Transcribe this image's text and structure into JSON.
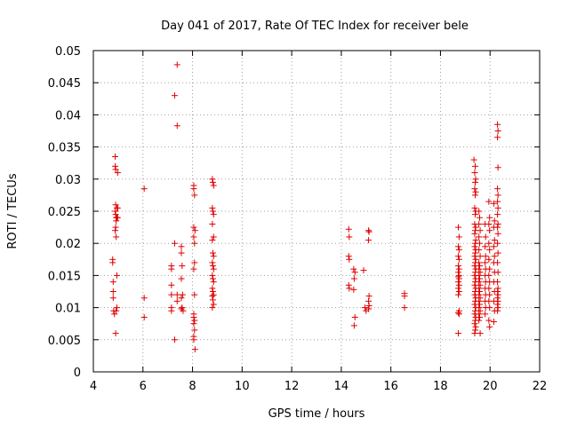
{
  "chart_data": {
    "type": "scatter",
    "title": "Day 041 of 2017, Rate Of TEC Index for receiver bele",
    "xlabel": "GPS time / hours",
    "ylabel": "ROTI / TECUs",
    "xlim": [
      4,
      22
    ],
    "ylim": [
      0,
      0.05
    ],
    "xticks": [
      "4",
      "6",
      "8",
      "10",
      "12",
      "14",
      "16",
      "18",
      "20",
      "22"
    ],
    "yticks": [
      "0",
      "0.005",
      "0.01",
      "0.015",
      "0.02",
      "0.025",
      "0.03",
      "0.035",
      "0.04",
      "0.045",
      "0.05"
    ],
    "grid": true,
    "marker": "+",
    "color": "#e00000",
    "series": [
      {
        "name": "ROTI",
        "points": [
          [
            4.78,
            0.0175
          ],
          [
            4.78,
            0.017
          ],
          [
            4.8,
            0.014
          ],
          [
            4.8,
            0.0125
          ],
          [
            4.8,
            0.0115
          ],
          [
            4.82,
            0.0095
          ],
          [
            4.85,
            0.009
          ],
          [
            4.88,
            0.0335
          ],
          [
            4.88,
            0.032
          ],
          [
            4.9,
            0.0315
          ],
          [
            4.9,
            0.026
          ],
          [
            4.88,
            0.025
          ],
          [
            4.9,
            0.0245
          ],
          [
            4.92,
            0.024
          ],
          [
            4.92,
            0.0235
          ],
          [
            4.9,
            0.0225
          ],
          [
            4.88,
            0.022
          ],
          [
            4.92,
            0.021
          ],
          [
            4.95,
            0.0255
          ],
          [
            4.95,
            0.024
          ],
          [
            4.95,
            0.015
          ],
          [
            4.95,
            0.01
          ],
          [
            4.92,
            0.0095
          ],
          [
            4.9,
            0.006
          ],
          [
            4.98,
            0.031
          ],
          [
            4.98,
            0.0255
          ],
          [
            4.98,
            0.024
          ],
          [
            6.05,
            0.0285
          ],
          [
            6.05,
            0.0115
          ],
          [
            6.05,
            0.0085
          ],
          [
            7.15,
            0.0165
          ],
          [
            7.15,
            0.016
          ],
          [
            7.15,
            0.0135
          ],
          [
            7.15,
            0.012
          ],
          [
            7.15,
            0.01
          ],
          [
            7.15,
            0.0095
          ],
          [
            7.28,
            0.043
          ],
          [
            7.28,
            0.02
          ],
          [
            7.28,
            0.005
          ],
          [
            7.38,
            0.0478
          ],
          [
            7.38,
            0.0383
          ],
          [
            7.38,
            0.012
          ],
          [
            7.38,
            0.011
          ],
          [
            7.55,
            0.0195
          ],
          [
            7.55,
            0.0185
          ],
          [
            7.58,
            0.0165
          ],
          [
            7.55,
            0.0145
          ],
          [
            7.6,
            0.012
          ],
          [
            7.55,
            0.0115
          ],
          [
            7.58,
            0.01
          ],
          [
            7.62,
            0.0095
          ],
          [
            7.55,
            0.0098
          ],
          [
            8.05,
            0.029
          ],
          [
            8.05,
            0.0285
          ],
          [
            8.08,
            0.0275
          ],
          [
            8.05,
            0.0225
          ],
          [
            8.1,
            0.022
          ],
          [
            8.05,
            0.021
          ],
          [
            8.08,
            0.02
          ],
          [
            8.08,
            0.017
          ],
          [
            8.05,
            0.016
          ],
          [
            8.08,
            0.012
          ],
          [
            8.05,
            0.009
          ],
          [
            8.05,
            0.0085
          ],
          [
            8.08,
            0.008
          ],
          [
            8.05,
            0.0075
          ],
          [
            8.08,
            0.0065
          ],
          [
            8.05,
            0.0055
          ],
          [
            8.05,
            0.005
          ],
          [
            8.1,
            0.0035
          ],
          [
            8.8,
            0.03
          ],
          [
            8.82,
            0.0295
          ],
          [
            8.85,
            0.029
          ],
          [
            8.8,
            0.0255
          ],
          [
            8.82,
            0.025
          ],
          [
            8.85,
            0.0245
          ],
          [
            8.8,
            0.023
          ],
          [
            8.85,
            0.021
          ],
          [
            8.8,
            0.0205
          ],
          [
            8.82,
            0.0185
          ],
          [
            8.85,
            0.018
          ],
          [
            8.8,
            0.017
          ],
          [
            8.82,
            0.0165
          ],
          [
            8.85,
            0.016
          ],
          [
            8.8,
            0.015
          ],
          [
            8.82,
            0.0145
          ],
          [
            8.85,
            0.014
          ],
          [
            8.8,
            0.013
          ],
          [
            8.82,
            0.0125
          ],
          [
            8.85,
            0.012
          ],
          [
            8.8,
            0.0118
          ],
          [
            8.82,
            0.0112
          ],
          [
            8.85,
            0.0105
          ],
          [
            8.8,
            0.01
          ],
          [
            14.3,
            0.0222
          ],
          [
            14.32,
            0.021
          ],
          [
            14.3,
            0.018
          ],
          [
            14.32,
            0.0175
          ],
          [
            14.3,
            0.0135
          ],
          [
            14.32,
            0.013
          ],
          [
            14.5,
            0.016
          ],
          [
            14.55,
            0.0155
          ],
          [
            14.52,
            0.0145
          ],
          [
            14.5,
            0.0128
          ],
          [
            14.55,
            0.0085
          ],
          [
            14.52,
            0.0072
          ],
          [
            14.9,
            0.0158
          ],
          [
            14.95,
            0.01
          ],
          [
            15.0,
            0.0095
          ],
          [
            15.1,
            0.022
          ],
          [
            15.12,
            0.0218
          ],
          [
            15.1,
            0.0205
          ],
          [
            15.12,
            0.0118
          ],
          [
            15.1,
            0.011
          ],
          [
            15.12,
            0.0103
          ],
          [
            15.1,
            0.0098
          ],
          [
            16.55,
            0.0122
          ],
          [
            16.55,
            0.0118
          ],
          [
            16.55,
            0.01
          ],
          [
            18.72,
            0.0225
          ],
          [
            18.75,
            0.021
          ],
          [
            18.72,
            0.0195
          ],
          [
            18.75,
            0.019
          ],
          [
            18.72,
            0.018
          ],
          [
            18.75,
            0.0175
          ],
          [
            18.72,
            0.0165
          ],
          [
            18.75,
            0.016
          ],
          [
            18.72,
            0.0155
          ],
          [
            18.75,
            0.015
          ],
          [
            18.72,
            0.0148
          ],
          [
            18.75,
            0.0145
          ],
          [
            18.72,
            0.014
          ],
          [
            18.75,
            0.0135
          ],
          [
            18.72,
            0.013
          ],
          [
            18.75,
            0.0125
          ],
          [
            18.72,
            0.012
          ],
          [
            18.75,
            0.0095
          ],
          [
            18.72,
            0.0092
          ],
          [
            18.75,
            0.009
          ],
          [
            18.72,
            0.006
          ],
          [
            19.35,
            0.033
          ],
          [
            19.4,
            0.032
          ],
          [
            19.38,
            0.031
          ],
          [
            19.42,
            0.03
          ],
          [
            19.4,
            0.0295
          ],
          [
            19.38,
            0.0285
          ],
          [
            19.42,
            0.028
          ],
          [
            19.4,
            0.0275
          ],
          [
            19.38,
            0.0255
          ],
          [
            19.42,
            0.025
          ],
          [
            19.4,
            0.0245
          ],
          [
            19.38,
            0.023
          ],
          [
            19.42,
            0.0225
          ],
          [
            19.4,
            0.022
          ],
          [
            19.38,
            0.0215
          ],
          [
            19.42,
            0.0205
          ],
          [
            19.4,
            0.02
          ],
          [
            19.38,
            0.0195
          ],
          [
            19.42,
            0.019
          ],
          [
            19.4,
            0.0185
          ],
          [
            19.38,
            0.018
          ],
          [
            19.42,
            0.0175
          ],
          [
            19.4,
            0.017
          ],
          [
            19.38,
            0.0165
          ],
          [
            19.42,
            0.016
          ],
          [
            19.4,
            0.0155
          ],
          [
            19.38,
            0.015
          ],
          [
            19.42,
            0.0145
          ],
          [
            19.4,
            0.014
          ],
          [
            19.38,
            0.0135
          ],
          [
            19.42,
            0.013
          ],
          [
            19.4,
            0.0125
          ],
          [
            19.38,
            0.012
          ],
          [
            19.42,
            0.0115
          ],
          [
            19.4,
            0.011
          ],
          [
            19.38,
            0.0105
          ],
          [
            19.42,
            0.01
          ],
          [
            19.4,
            0.0095
          ],
          [
            19.38,
            0.009
          ],
          [
            19.42,
            0.0085
          ],
          [
            19.4,
            0.008
          ],
          [
            19.38,
            0.0075
          ],
          [
            19.42,
            0.007
          ],
          [
            19.4,
            0.0065
          ],
          [
            19.38,
            0.006
          ],
          [
            19.55,
            0.025
          ],
          [
            19.58,
            0.024
          ],
          [
            19.55,
            0.023
          ],
          [
            19.6,
            0.022
          ],
          [
            19.55,
            0.021
          ],
          [
            19.58,
            0.02
          ],
          [
            19.55,
            0.019
          ],
          [
            19.6,
            0.018
          ],
          [
            19.55,
            0.017
          ],
          [
            19.58,
            0.0165
          ],
          [
            19.55,
            0.016
          ],
          [
            19.6,
            0.0155
          ],
          [
            19.55,
            0.015
          ],
          [
            19.58,
            0.0145
          ],
          [
            19.55,
            0.014
          ],
          [
            19.6,
            0.0135
          ],
          [
            19.55,
            0.013
          ],
          [
            19.58,
            0.0125
          ],
          [
            19.55,
            0.012
          ],
          [
            19.6,
            0.0115
          ],
          [
            19.55,
            0.011
          ],
          [
            19.58,
            0.0105
          ],
          [
            19.55,
            0.01
          ],
          [
            19.6,
            0.0095
          ],
          [
            19.55,
            0.009
          ],
          [
            19.58,
            0.0085
          ],
          [
            19.55,
            0.008
          ],
          [
            19.6,
            0.006
          ],
          [
            19.8,
            0.023
          ],
          [
            19.82,
            0.021
          ],
          [
            19.8,
            0.0195
          ],
          [
            19.82,
            0.018
          ],
          [
            19.8,
            0.017
          ],
          [
            19.82,
            0.016
          ],
          [
            19.8,
            0.015
          ],
          [
            19.82,
            0.014
          ],
          [
            19.8,
            0.013
          ],
          [
            19.82,
            0.012
          ],
          [
            19.8,
            0.011
          ],
          [
            19.82,
            0.01
          ],
          [
            19.8,
            0.009
          ],
          [
            19.95,
            0.0265
          ],
          [
            19.98,
            0.024
          ],
          [
            19.95,
            0.023
          ],
          [
            19.98,
            0.022
          ],
          [
            19.95,
            0.02
          ],
          [
            19.98,
            0.019
          ],
          [
            19.95,
            0.0175
          ],
          [
            19.98,
            0.016
          ],
          [
            19.95,
            0.015
          ],
          [
            19.98,
            0.014
          ],
          [
            19.95,
            0.013
          ],
          [
            19.98,
            0.012
          ],
          [
            19.95,
            0.011
          ],
          [
            19.98,
            0.01
          ],
          [
            19.95,
            0.008
          ],
          [
            19.98,
            0.007
          ],
          [
            20.15,
            0.0262
          ],
          [
            20.18,
            0.0235
          ],
          [
            20.15,
            0.0225
          ],
          [
            20.18,
            0.0205
          ],
          [
            20.15,
            0.0195
          ],
          [
            20.18,
            0.018
          ],
          [
            20.15,
            0.017
          ],
          [
            20.18,
            0.0155
          ],
          [
            20.15,
            0.014
          ],
          [
            20.18,
            0.0125
          ],
          [
            20.15,
            0.011
          ],
          [
            20.18,
            0.0095
          ],
          [
            20.15,
            0.0078
          ],
          [
            20.3,
            0.0385
          ],
          [
            20.32,
            0.0375
          ],
          [
            20.3,
            0.0365
          ],
          [
            20.32,
            0.0318
          ],
          [
            20.3,
            0.0285
          ],
          [
            20.32,
            0.0275
          ],
          [
            20.3,
            0.0265
          ],
          [
            20.32,
            0.0255
          ],
          [
            20.3,
            0.0245
          ],
          [
            20.32,
            0.023
          ],
          [
            20.3,
            0.0225
          ],
          [
            20.32,
            0.0215
          ],
          [
            20.3,
            0.02
          ],
          [
            20.32,
            0.0185
          ],
          [
            20.3,
            0.017
          ],
          [
            20.32,
            0.0155
          ],
          [
            20.3,
            0.014
          ],
          [
            20.32,
            0.013
          ],
          [
            20.3,
            0.0125
          ],
          [
            20.32,
            0.012
          ],
          [
            20.3,
            0.0115
          ],
          [
            20.32,
            0.011
          ],
          [
            20.3,
            0.0105
          ],
          [
            20.32,
            0.01
          ],
          [
            20.3,
            0.0095
          ]
        ]
      }
    ]
  }
}
